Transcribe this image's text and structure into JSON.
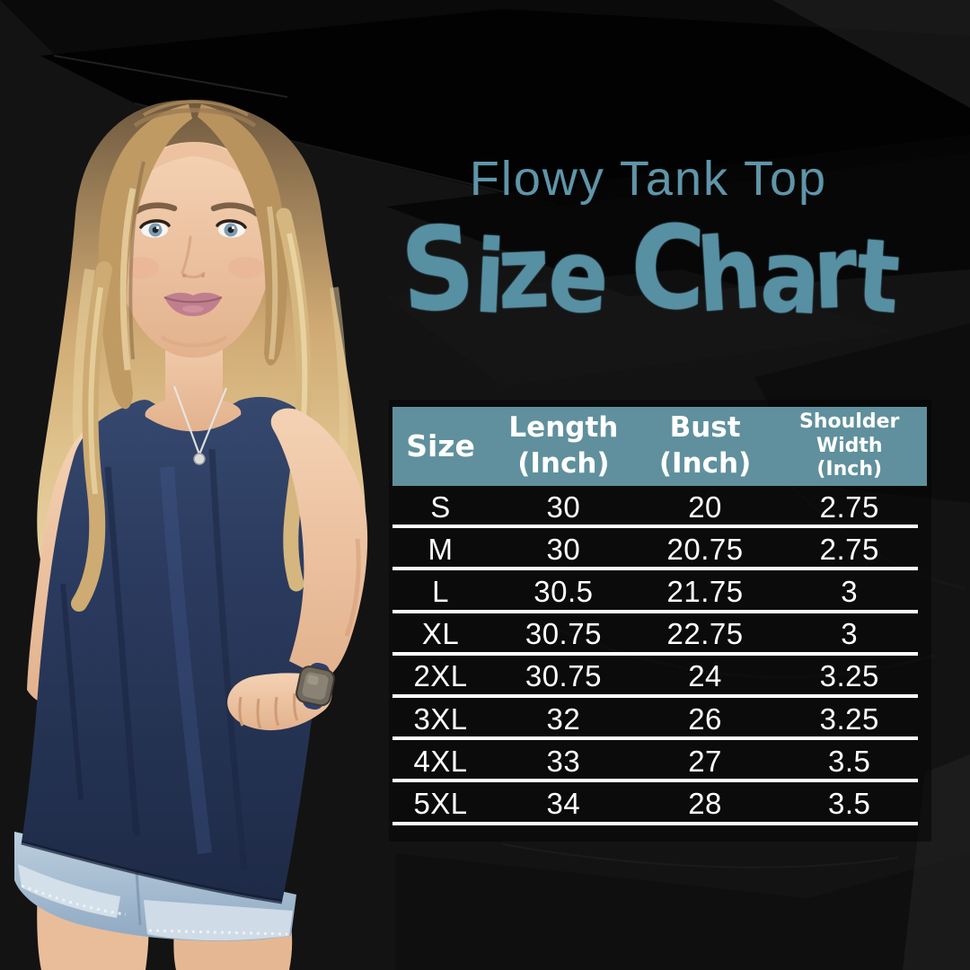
{
  "header": {
    "product_line": "Flowy Tank Top",
    "heading": "Size Chart"
  },
  "colors": {
    "accent_teal": "#5f95a9",
    "heading_teal": "#578fa3",
    "table_header_bg": "#60909d",
    "table_text": "#ffffff",
    "divider": "#ffffff",
    "background_black": "#121212",
    "tank_navy": "#2b3b5f",
    "denim_blue": "#a7bed2",
    "hair_blonde": "#d2ac76",
    "skin": "#eec8a8"
  },
  "model_photo": {
    "description": "Smiling woman with long wavy blonde hair wearing a navy flowy tank top over light-wash rolled-cuff denim shorts, one hand on hip, smartwatch with navy band on her wrist, small silver pendant necklace"
  },
  "chart_data": {
    "type": "table",
    "title": "Flowy Tank Top Size Chart",
    "columns": [
      {
        "lines": [
          "Size"
        ]
      },
      {
        "lines": [
          "Length",
          "(Inch)"
        ]
      },
      {
        "lines": [
          "Bust",
          "(Inch)"
        ]
      },
      {
        "lines": [
          "Shoulder",
          "Width",
          "(Inch)"
        ]
      }
    ],
    "rows": [
      {
        "size": "S",
        "length": "30",
        "bust": "20",
        "shoulder_width": "2.75"
      },
      {
        "size": "M",
        "length": "30",
        "bust": "20.75",
        "shoulder_width": "2.75"
      },
      {
        "size": "L",
        "length": "30.5",
        "bust": "21.75",
        "shoulder_width": "3"
      },
      {
        "size": "XL",
        "length": "30.75",
        "bust": "22.75",
        "shoulder_width": "3"
      },
      {
        "size": "2XL",
        "length": "30.75",
        "bust": "24",
        "shoulder_width": "3.25"
      },
      {
        "size": "3XL",
        "length": "32",
        "bust": "26",
        "shoulder_width": "3.25"
      },
      {
        "size": "4XL",
        "length": "33",
        "bust": "27",
        "shoulder_width": "3.5"
      },
      {
        "size": "5XL",
        "length": "34",
        "bust": "28",
        "shoulder_width": "3.5"
      }
    ]
  }
}
